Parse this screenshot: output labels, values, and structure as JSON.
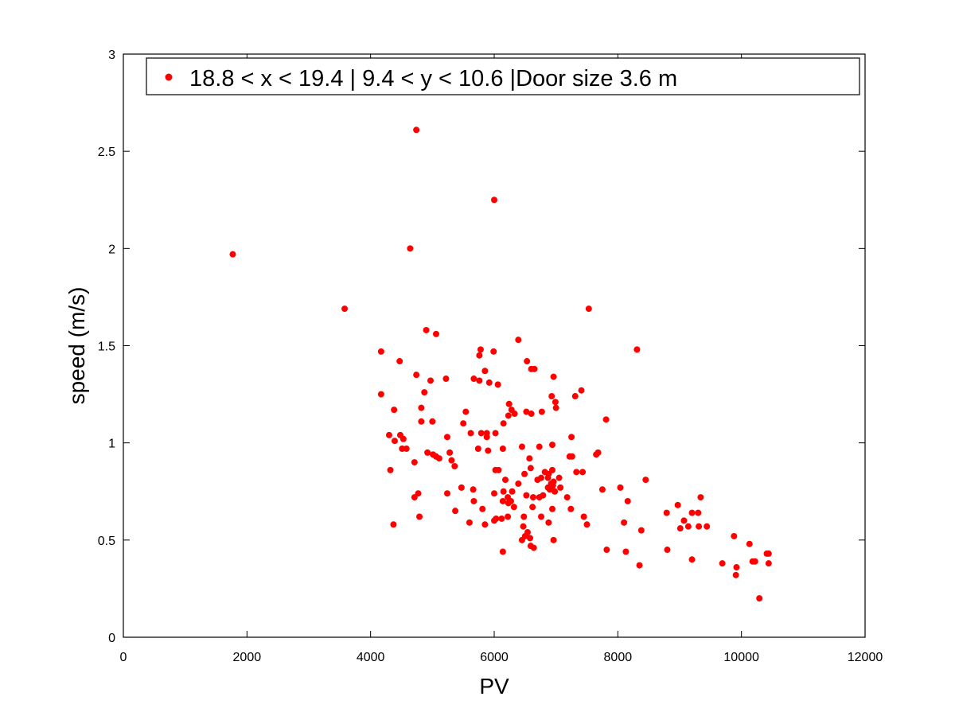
{
  "chart_data": {
    "type": "scatter",
    "title": "",
    "xlabel": "PV",
    "ylabel": "speed (m/s)",
    "xlim": [
      0,
      12000
    ],
    "ylim": [
      0,
      3
    ],
    "xticks": [
      0,
      2000,
      4000,
      6000,
      8000,
      10000,
      12000
    ],
    "yticks": [
      0,
      0.5,
      1,
      1.5,
      2,
      2.5,
      3
    ],
    "xtick_labels": [
      "0",
      "2000",
      "4000",
      "6000",
      "8000",
      "10000",
      "12000"
    ],
    "ytick_labels": [
      "0",
      "0.5",
      "1",
      "1.5",
      "2",
      "2.5",
      "3"
    ],
    "grid": false,
    "legend_position": "top",
    "series": [
      {
        "name": "18.8 < x < 19.4 | 9.4 < y < 10.6 |Door size 3.6 m",
        "color": "#ff0000",
        "points": [
          [
            1770,
            1.97
          ],
          [
            3580,
            1.69
          ],
          [
            4740,
            2.61
          ],
          [
            6000,
            2.25
          ],
          [
            4640,
            2.0
          ],
          [
            7530,
            1.69
          ],
          [
            8310,
            1.48
          ],
          [
            4170,
            1.47
          ],
          [
            4900,
            1.58
          ],
          [
            5060,
            1.56
          ],
          [
            6390,
            1.53
          ],
          [
            5780,
            1.48
          ],
          [
            5990,
            1.47
          ],
          [
            5760,
            1.45
          ],
          [
            4470,
            1.42
          ],
          [
            6530,
            1.42
          ],
          [
            6600,
            1.38
          ],
          [
            6650,
            1.38
          ],
          [
            5850,
            1.37
          ],
          [
            4740,
            1.35
          ],
          [
            5670,
            1.33
          ],
          [
            6960,
            1.34
          ],
          [
            5220,
            1.33
          ],
          [
            4970,
            1.32
          ],
          [
            5760,
            1.32
          ],
          [
            5920,
            1.31
          ],
          [
            6060,
            1.3
          ],
          [
            7410,
            1.27
          ],
          [
            4870,
            1.26
          ],
          [
            4170,
            1.25
          ],
          [
            6930,
            1.24
          ],
          [
            7310,
            1.24
          ],
          [
            6990,
            1.21
          ],
          [
            6240,
            1.2
          ],
          [
            4820,
            1.18
          ],
          [
            7000,
            1.18
          ],
          [
            6280,
            1.17
          ],
          [
            4380,
            1.17
          ],
          [
            5540,
            1.16
          ],
          [
            6770,
            1.16
          ],
          [
            6520,
            1.16
          ],
          [
            6330,
            1.15
          ],
          [
            6230,
            1.14
          ],
          [
            4820,
            1.11
          ],
          [
            6600,
            1.15
          ],
          [
            5000,
            1.11
          ],
          [
            7810,
            1.12
          ],
          [
            6150,
            1.1
          ],
          [
            5620,
            1.05
          ],
          [
            5880,
            1.03
          ],
          [
            5500,
            1.1
          ],
          [
            6020,
            1.05
          ],
          [
            5790,
            1.05
          ],
          [
            5880,
            1.05
          ],
          [
            5240,
            1.03
          ],
          [
            4300,
            1.04
          ],
          [
            4480,
            1.04
          ],
          [
            4530,
            1.02
          ],
          [
            4390,
            1.01
          ],
          [
            7250,
            1.03
          ],
          [
            6940,
            0.99
          ],
          [
            6450,
            0.98
          ],
          [
            5900,
            0.96
          ],
          [
            5740,
            0.97
          ],
          [
            6140,
            0.97
          ],
          [
            6730,
            0.98
          ],
          [
            4510,
            0.97
          ],
          [
            4580,
            0.97
          ],
          [
            4920,
            0.95
          ],
          [
            5280,
            0.95
          ],
          [
            7680,
            0.95
          ],
          [
            7650,
            0.94
          ],
          [
            5010,
            0.94
          ],
          [
            5060,
            0.93
          ],
          [
            7220,
            0.93
          ],
          [
            7260,
            0.93
          ],
          [
            5110,
            0.92
          ],
          [
            6570,
            0.92
          ],
          [
            5310,
            0.91
          ],
          [
            4710,
            0.9
          ],
          [
            5360,
            0.88
          ],
          [
            6590,
            0.87
          ],
          [
            7330,
            0.85
          ],
          [
            7430,
            0.85
          ],
          [
            4320,
            0.86
          ],
          [
            6940,
            0.86
          ],
          [
            6820,
            0.85
          ],
          [
            6880,
            0.84
          ],
          [
            6490,
            0.84
          ],
          [
            6020,
            0.86
          ],
          [
            6070,
            0.86
          ],
          [
            6760,
            0.82
          ],
          [
            6870,
            0.82
          ],
          [
            7050,
            0.82
          ],
          [
            6180,
            0.81
          ],
          [
            6700,
            0.81
          ],
          [
            8450,
            0.81
          ],
          [
            6960,
            0.8
          ],
          [
            6920,
            0.79
          ],
          [
            6950,
            0.78
          ],
          [
            6870,
            0.77
          ],
          [
            7070,
            0.77
          ],
          [
            8040,
            0.77
          ],
          [
            6390,
            0.79
          ],
          [
            6900,
            0.76
          ],
          [
            5470,
            0.77
          ],
          [
            5660,
            0.76
          ],
          [
            6980,
            0.75
          ],
          [
            6000,
            0.74
          ],
          [
            6150,
            0.75
          ],
          [
            6290,
            0.75
          ],
          [
            7750,
            0.76
          ],
          [
            4770,
            0.74
          ],
          [
            5810,
            0.66
          ],
          [
            6220,
            0.72
          ],
          [
            4710,
            0.72
          ],
          [
            5240,
            0.74
          ],
          [
            6520,
            0.73
          ],
          [
            6790,
            0.73
          ],
          [
            6630,
            0.72
          ],
          [
            6730,
            0.72
          ],
          [
            7180,
            0.72
          ],
          [
            9340,
            0.72
          ],
          [
            5670,
            0.7
          ],
          [
            6140,
            0.7
          ],
          [
            6230,
            0.69
          ],
          [
            6270,
            0.7
          ],
          [
            8160,
            0.7
          ],
          [
            6620,
            0.67
          ],
          [
            7240,
            0.66
          ],
          [
            6940,
            0.66
          ],
          [
            5370,
            0.65
          ],
          [
            6320,
            0.67
          ],
          [
            8790,
            0.64
          ],
          [
            8970,
            0.68
          ],
          [
            9200,
            0.64
          ],
          [
            9300,
            0.64
          ],
          [
            4790,
            0.62
          ],
          [
            6480,
            0.62
          ],
          [
            6760,
            0.62
          ],
          [
            7450,
            0.62
          ],
          [
            6000,
            0.6
          ],
          [
            6120,
            0.61
          ],
          [
            6220,
            0.62
          ],
          [
            9070,
            0.6
          ],
          [
            5600,
            0.59
          ],
          [
            6030,
            0.61
          ],
          [
            6880,
            0.59
          ],
          [
            8100,
            0.59
          ],
          [
            5850,
            0.58
          ],
          [
            7500,
            0.58
          ],
          [
            4370,
            0.58
          ],
          [
            6470,
            0.57
          ],
          [
            9140,
            0.57
          ],
          [
            9310,
            0.57
          ],
          [
            9440,
            0.57
          ],
          [
            9010,
            0.56
          ],
          [
            8380,
            0.55
          ],
          [
            6540,
            0.54
          ],
          [
            6500,
            0.52
          ],
          [
            6580,
            0.51
          ],
          [
            6960,
            0.5
          ],
          [
            9880,
            0.52
          ],
          [
            6450,
            0.5
          ],
          [
            6590,
            0.47
          ],
          [
            6640,
            0.46
          ],
          [
            6140,
            0.44
          ],
          [
            7820,
            0.45
          ],
          [
            8800,
            0.45
          ],
          [
            8130,
            0.44
          ],
          [
            10130,
            0.48
          ],
          [
            10410,
            0.43
          ],
          [
            10440,
            0.43
          ],
          [
            9200,
            0.4
          ],
          [
            10180,
            0.39
          ],
          [
            10220,
            0.39
          ],
          [
            9690,
            0.38
          ],
          [
            10440,
            0.38
          ],
          [
            8350,
            0.37
          ],
          [
            9920,
            0.36
          ],
          [
            9910,
            0.32
          ],
          [
            10290,
            0.2
          ]
        ]
      }
    ]
  }
}
